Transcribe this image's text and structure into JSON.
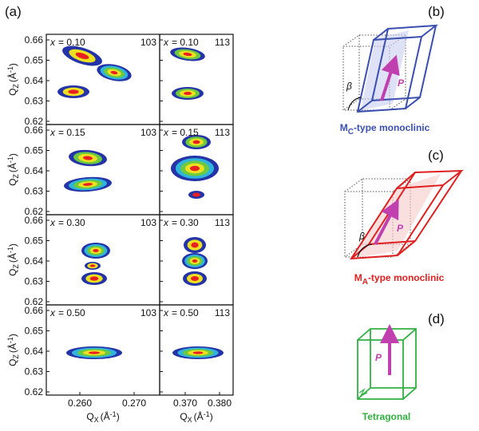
{
  "panel_a": {
    "label": "(a)",
    "y_axis": {
      "main": "Q",
      "sub": "Z",
      "unit": "(Å",
      "sup": "-1",
      "close": ")"
    },
    "yticks": [
      "0.66",
      "0.65",
      "0.64",
      "0.63",
      "0.62"
    ],
    "rows": [
      {
        "var": "x",
        "value": "= 0.10",
        "reflections": [
          "103",
          "113"
        ]
      },
      {
        "var": "x",
        "value": "= 0.15",
        "reflections": [
          "103",
          "113"
        ]
      },
      {
        "var": "x",
        "value": "= 0.30",
        "reflections": [
          "103",
          "113"
        ]
      },
      {
        "var": "x",
        "value": "= 0.50",
        "reflections": [
          "103",
          "113"
        ]
      }
    ],
    "columns": [
      {
        "xticks": [
          "0.260",
          "0.270"
        ],
        "x_axis": {
          "main": "Q",
          "sub": "X",
          "unit": "(Å",
          "sup": "-1",
          "close": ")"
        }
      },
      {
        "xticks": [
          "0.370",
          "0.380"
        ],
        "x_axis": {
          "main": "Q",
          "sub": "X",
          "unit": "(Å",
          "sup": "-1",
          "close": ")"
        }
      }
    ]
  },
  "panel_b": {
    "label": "(b)",
    "arrow": "P",
    "angle": "β",
    "caption": {
      "main": "M",
      "sub": "C",
      "rest": "-type monoclinic"
    }
  },
  "panel_c": {
    "label": "(c)",
    "arrow": "P",
    "angle": "β",
    "caption": {
      "main": "M",
      "sub": "A",
      "rest": "-type monoclinic"
    }
  },
  "panel_d": {
    "label": "(d)",
    "arrow": "P",
    "caption": "Tetragonal"
  }
}
